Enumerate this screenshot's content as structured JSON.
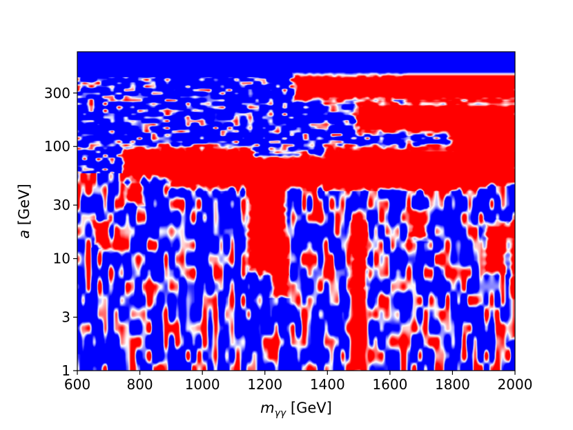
{
  "chart_data": {
    "type": "heatmap",
    "title": "",
    "xlabel": {
      "main": "m",
      "sub": "γγ",
      "unit": " [GeV]"
    },
    "ylabel": {
      "main": "a",
      "unit": " [GeV]"
    },
    "xlim": [
      600,
      2000
    ],
    "ylim": [
      1,
      700
    ],
    "y_scale": "log",
    "x_ticks": [
      600,
      800,
      1000,
      1200,
      1400,
      1600,
      1800,
      2000
    ],
    "x_tick_labels": [
      "600",
      "800",
      "1000",
      "1200",
      "1400",
      "1600",
      "1800",
      "2000"
    ],
    "y_ticks": [
      1,
      3,
      10,
      30,
      100,
      300
    ],
    "y_tick_labels": [
      "1",
      "3",
      "10",
      "30",
      "100",
      "300"
    ],
    "colormap": {
      "low": "#0000ff",
      "mid": "#ffffff",
      "high": "#ff0000"
    },
    "grid": false,
    "colorbar": false,
    "excess_regions": [
      {
        "x": [
          750,
          1150
        ],
        "y": [
          55,
          95
        ]
      },
      {
        "x": [
          900,
          1900
        ],
        "y": [
          45,
          80
        ]
      },
      {
        "x": [
          1150,
          1260
        ],
        "y": [
          8,
          50
        ]
      },
      {
        "x": [
          1400,
          1800
        ],
        "y": [
          45,
          95
        ]
      },
      {
        "x": [
          1800,
          2000
        ],
        "y": [
          50,
          160
        ]
      },
      {
        "x": [
          1300,
          2000
        ],
        "y": [
          270,
          420
        ]
      },
      {
        "x": [
          1500,
          2000
        ],
        "y": [
          140,
          230
        ]
      },
      {
        "x": [
          760,
          800
        ],
        "y": [
          33,
          42
        ]
      },
      {
        "x": [
          1230,
          1260
        ],
        "y": [
          5,
          9
        ]
      },
      {
        "x": [
          1480,
          1520
        ],
        "y": [
          1,
          20
        ]
      },
      {
        "x": [
          1910,
          1960
        ],
        "y": [
          8,
          20
        ]
      },
      {
        "x": [
          660,
          690
        ],
        "y": [
          14,
          20
        ]
      },
      {
        "x": [
          1670,
          1710
        ],
        "y": [
          16,
          26
        ]
      },
      {
        "x": [
          1990,
          2000
        ],
        "y": [
          2,
          20
        ]
      }
    ]
  }
}
